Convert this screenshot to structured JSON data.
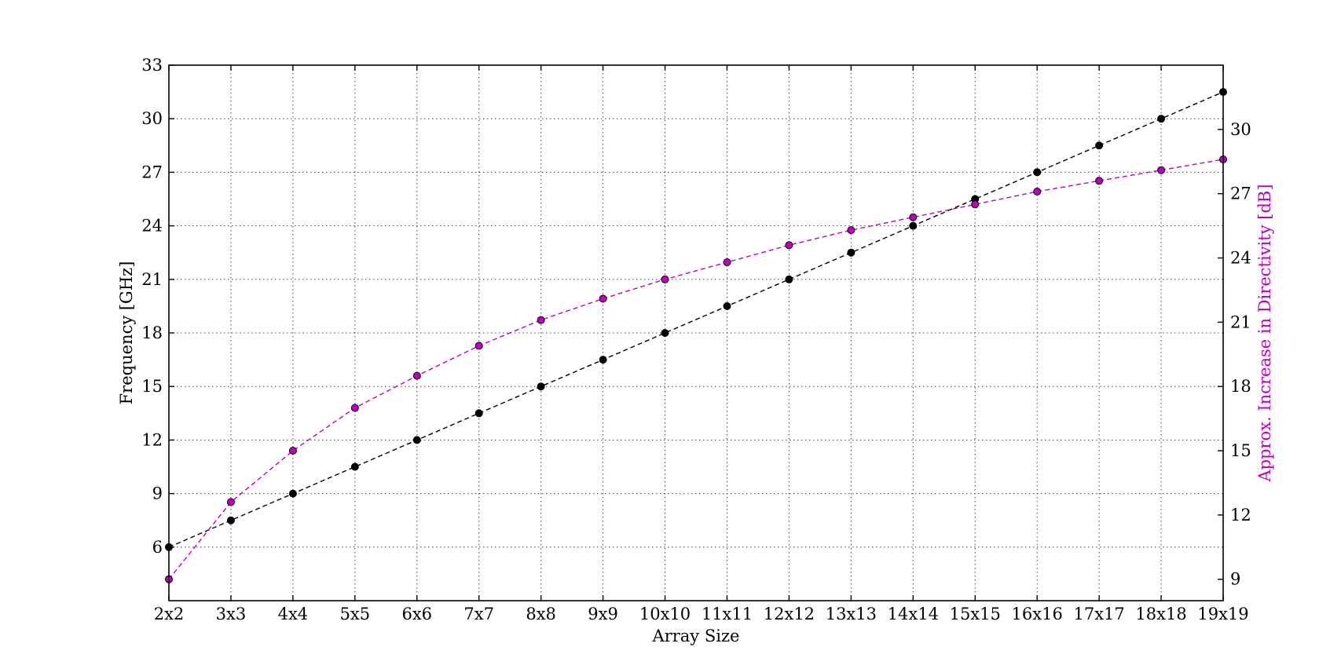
{
  "chart_data": {
    "type": "line",
    "title": "",
    "xlabel": "Array Size",
    "ylabel": "Frequency [GHz]",
    "y2label": "Approx. Increase in Directivity [dB]",
    "categories": [
      "2x2",
      "3x3",
      "4x4",
      "5x5",
      "6x6",
      "7x7",
      "8x8",
      "9x9",
      "10x10",
      "11x11",
      "12x12",
      "13x13",
      "14x14",
      "15x15",
      "16x16",
      "17x17",
      "18x18",
      "19x19"
    ],
    "ylim": [
      3,
      33
    ],
    "yticks": [
      6,
      9,
      12,
      15,
      18,
      21,
      24,
      27,
      30,
      33
    ],
    "y2lim": [
      8,
      33
    ],
    "y2ticks": [
      9,
      12,
      15,
      18,
      21,
      24,
      27,
      30
    ],
    "grid": true,
    "colors": {
      "frequency": "#000000",
      "directivity": "#bf00bf",
      "axis": "#000000"
    },
    "series": [
      {
        "axis": "left",
        "values": [
          6,
          7.5,
          9,
          10.5,
          12,
          13.5,
          15,
          16.5,
          18,
          19.5,
          21,
          22.5,
          24,
          25.5,
          27,
          28.5,
          30,
          31.5
        ]
      },
      {
        "axis": "right",
        "values": [
          9.0,
          12.6,
          15.0,
          17.0,
          18.5,
          19.9,
          21.1,
          22.1,
          23.0,
          23.8,
          24.6,
          25.3,
          25.9,
          26.5,
          27.1,
          27.6,
          28.1,
          28.6
        ]
      }
    ]
  }
}
